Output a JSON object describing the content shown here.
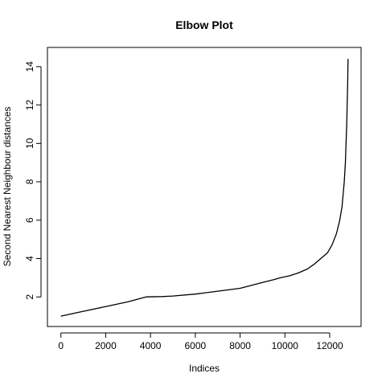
{
  "chart_data": {
    "type": "line",
    "title": "Elbow Plot",
    "xlabel": "Indices",
    "ylabel": "Second Nearest Neighbour distances",
    "xlim": [
      -600,
      13400
    ],
    "ylim": [
      0.46,
      15.0
    ],
    "x_ticks": [
      0,
      2000,
      4000,
      6000,
      8000,
      10000,
      12000
    ],
    "x_tick_labels": [
      "0",
      "2000",
      "4000",
      "6000",
      "8000",
      "10000",
      "12000"
    ],
    "y_ticks": [
      2,
      4,
      6,
      8,
      10,
      12,
      14
    ],
    "y_tick_labels": [
      "2",
      "4",
      "6",
      "8",
      "10",
      "12",
      "14"
    ],
    "grid": false,
    "series": [
      {
        "x": [
          0,
          1000,
          2000,
          3000,
          3800,
          4500,
          5000,
          6000,
          7000,
          8000,
          8500,
          9000,
          9500,
          9800,
          10200,
          10600,
          11000,
          11300,
          11600,
          11900,
          12100,
          12300,
          12450,
          12550,
          12650,
          12700,
          12730,
          12760,
          12780,
          12800,
          12820
        ],
        "y": [
          1.0,
          1.25,
          1.5,
          1.75,
          2.0,
          2.02,
          2.05,
          2.15,
          2.3,
          2.45,
          2.6,
          2.75,
          2.9,
          3.0,
          3.1,
          3.25,
          3.45,
          3.7,
          4.0,
          4.3,
          4.7,
          5.3,
          6.0,
          6.7,
          8.0,
          9.0,
          10.0,
          11.0,
          12.0,
          13.0,
          14.4
        ]
      }
    ]
  }
}
